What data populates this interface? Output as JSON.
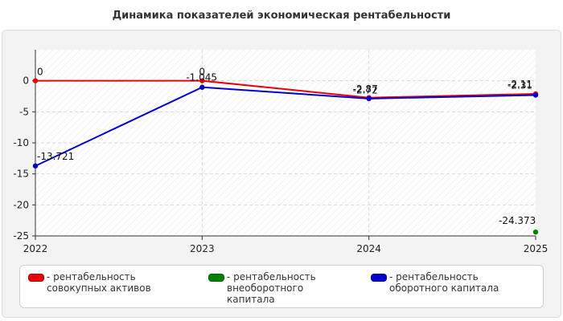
{
  "chart_data": {
    "type": "line",
    "title": "Динамика показателей экономическая рентабельности",
    "xlabel": "",
    "ylabel": "",
    "x": [
      "2022",
      "2023",
      "2024",
      "2025"
    ],
    "ylim": [
      -25,
      0
    ],
    "y_ticks": [
      "0",
      "-5",
      "-10",
      "-15",
      "-20",
      "-25"
    ],
    "grid": true,
    "legend_position": "bottom",
    "series": [
      {
        "name": "рентабельность совокупных активов",
        "color": "#e8000b",
        "values": [
          0,
          0,
          -2.72,
          -2.11
        ],
        "labels": [
          "0",
          "0",
          "-2.72",
          "-2.11"
        ]
      },
      {
        "name": "рентабельность внеоборотного капитала",
        "color": "#008000",
        "values": [
          null,
          null,
          null,
          -24.373
        ],
        "labels": [
          null,
          null,
          null,
          "-24.373"
        ]
      },
      {
        "name": "рентабельность оборотного капитала",
        "color": "#0000cc",
        "values": [
          -13.721,
          -1.045,
          -2.87,
          -2.31
        ],
        "labels": [
          "-13.721",
          "-1.045",
          "-2.87",
          "-2.31"
        ]
      }
    ]
  },
  "legend": {
    "items": [
      {
        "prefix": "- ",
        "label": "рентабельность совокупных активов",
        "color": "#e8000b"
      },
      {
        "prefix": "- ",
        "label": "рентабельность внеоборотного капитала",
        "color": "#008000"
      },
      {
        "prefix": "- ",
        "label": "рентабельность оборотного капитала",
        "color": "#0000cc"
      }
    ]
  }
}
